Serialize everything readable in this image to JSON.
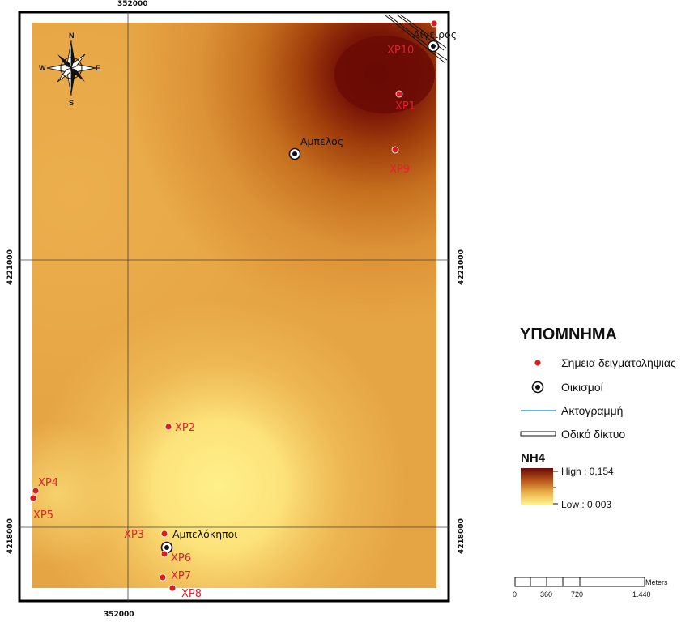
{
  "coords": {
    "x_left": "352000",
    "y_upper": "4221000",
    "y_lower": "4218000"
  },
  "compass": {
    "n": "N",
    "s": "S",
    "e": "E",
    "w": "W"
  },
  "sampling_points": [
    {
      "id": "XP1",
      "label": "XP1"
    },
    {
      "id": "XP2",
      "label": "XP2"
    },
    {
      "id": "XP3",
      "label": "XP3"
    },
    {
      "id": "XP4",
      "label": "XP4"
    },
    {
      "id": "XP5",
      "label": "XP5"
    },
    {
      "id": "XP6",
      "label": "XP6"
    },
    {
      "id": "XP7",
      "label": "XP7"
    },
    {
      "id": "XP8",
      "label": "XP8"
    },
    {
      "id": "XP9",
      "label": "XP9"
    },
    {
      "id": "XP10",
      "label": "XP10"
    }
  ],
  "settlements": [
    {
      "id": "aigeiros",
      "label": "Αίγειρος"
    },
    {
      "id": "ampelos",
      "label": "Αμπελος"
    },
    {
      "id": "ampelokipoi",
      "label": "Αμπελόκηποι"
    }
  ],
  "legend": {
    "title": "ΥΠΟΜΝΗΜΑ",
    "sampling_points": "Σημεια δειγματοληψιας",
    "settlements": "Οικισμοί",
    "coastline": "Ακτογραμμή",
    "road_network": "Οδικό δίκτυο",
    "variable": "NH4",
    "high": "High : 0,154",
    "low": "Low : 0,003",
    "colors": {
      "high": "#6b0a06",
      "mid": "#dc8e35",
      "low": "#fff38c",
      "point": "#d71f1f",
      "coast": "#2a9fd0"
    }
  },
  "scale_bar": {
    "unit": "Meters",
    "ticks": [
      "0",
      "360",
      "720",
      "1.440"
    ]
  }
}
